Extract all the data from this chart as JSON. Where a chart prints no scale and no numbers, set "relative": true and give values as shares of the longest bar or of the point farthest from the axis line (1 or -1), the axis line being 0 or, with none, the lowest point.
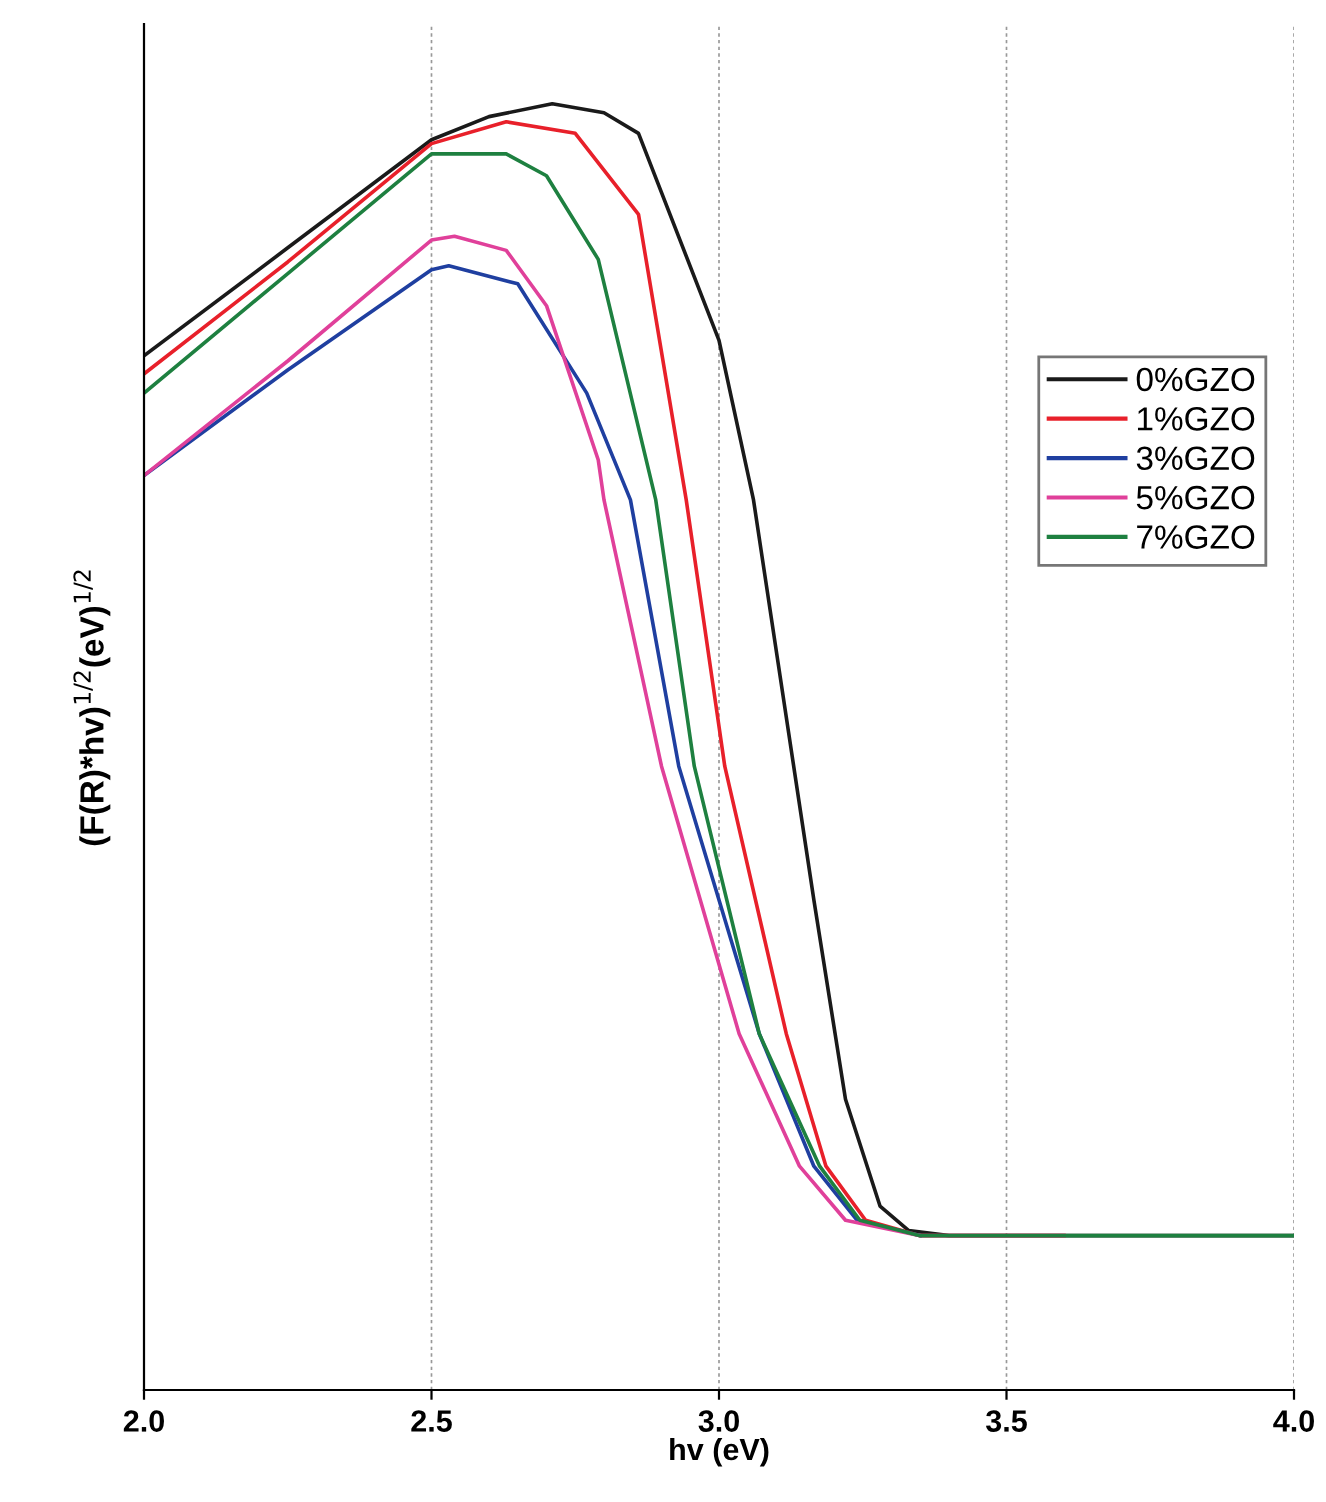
{
  "chart_data": {
    "type": "line",
    "relative": true,
    "xlabel": "hv (eV)",
    "ylabel": "(F(R)*hv)$^{1/2}$(eV)$^{1/2}$",
    "xlim": [
      2.0,
      4.0
    ],
    "xticks": [
      {
        "value": 2.0,
        "label": "2.0"
      },
      {
        "value": 2.5,
        "label": "2.5"
      },
      {
        "value": 3.0,
        "label": "3.0"
      },
      {
        "value": 3.5,
        "label": "3.5"
      },
      {
        "value": 4.0,
        "label": "4.0"
      }
    ],
    "grid": "x",
    "legend": "right",
    "line_style": "solid",
    "marker": "none",
    "series": [
      {
        "name": "0%GZO",
        "color": "#1a1a1a",
        "x": [
          2.0,
          2.25,
          2.5,
          2.6,
          2.71,
          2.8,
          2.86,
          3.0,
          3.06,
          3.165,
          3.22,
          3.28,
          3.33,
          3.4,
          3.6,
          3.8,
          4.0
        ],
        "values": [
          0.804,
          0.888,
          0.972,
          0.99,
          1.0,
          0.993,
          0.977,
          0.816,
          0.692,
          0.381,
          0.226,
          0.143,
          0.124,
          0.12,
          0.12,
          0.12,
          0.12
        ]
      },
      {
        "name": "1%GZO",
        "color": "#e8202a",
        "x": [
          2.0,
          2.25,
          2.5,
          2.63,
          2.75,
          2.86,
          2.943,
          3.01,
          3.117,
          3.186,
          3.255,
          3.35,
          3.6
        ],
        "values": [
          0.79,
          0.877,
          0.969,
          0.986,
          0.977,
          0.914,
          0.692,
          0.485,
          0.277,
          0.174,
          0.132,
          0.12,
          0.12
        ]
      },
      {
        "name": "3%GZO",
        "color": "#1f3fa0",
        "x": [
          2.0,
          2.25,
          2.5,
          2.53,
          2.65,
          2.77,
          2.846,
          2.93,
          3.07,
          3.165,
          3.24,
          3.35
        ],
        "values": [
          0.711,
          0.793,
          0.871,
          0.874,
          0.86,
          0.775,
          0.692,
          0.485,
          0.277,
          0.174,
          0.132,
          0.12
        ]
      },
      {
        "name": "5%GZO",
        "color": "#e0409a",
        "x": [
          2.0,
          2.25,
          2.5,
          2.54,
          2.63,
          2.7,
          2.79,
          2.8,
          2.9,
          3.035,
          3.14,
          3.22,
          3.35,
          3.6
        ],
        "values": [
          0.711,
          0.8,
          0.894,
          0.897,
          0.886,
          0.843,
          0.723,
          0.692,
          0.485,
          0.277,
          0.174,
          0.132,
          0.12,
          0.12
        ]
      },
      {
        "name": "7%GZO",
        "color": "#1e8040",
        "x": [
          2.0,
          2.25,
          2.5,
          2.63,
          2.7,
          2.79,
          2.89,
          2.957,
          3.07,
          3.175,
          3.245,
          3.35,
          3.6,
          3.8,
          4.0
        ],
        "values": [
          0.775,
          0.868,
          0.961,
          0.961,
          0.944,
          0.879,
          0.692,
          0.485,
          0.277,
          0.174,
          0.132,
          0.12,
          0.12,
          0.12,
          0.12
        ]
      }
    ]
  }
}
